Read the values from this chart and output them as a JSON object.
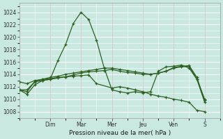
{
  "background_color": "#c8e8e0",
  "grid_color": "#ffffff",
  "line_color": "#2d6020",
  "xlabel": "Pression niveau de la mer( hPa )",
  "ylim": [
    1007,
    1025.5
  ],
  "yticks": [
    1008,
    1010,
    1012,
    1014,
    1016,
    1018,
    1020,
    1022,
    1024
  ],
  "day_labels": [
    "Dim",
    "Mar",
    "Mer",
    "Jeu",
    "Ven",
    "S"
  ],
  "day_positions": [
    2,
    4,
    6,
    8,
    10,
    12
  ],
  "xlim": [
    0,
    13
  ],
  "series": [
    {
      "x": [
        0,
        0.5,
        1,
        1.5,
        2,
        2.5,
        3,
        3.5,
        4,
        4.5,
        5,
        5.5,
        6,
        6.5,
        7,
        7.5,
        8,
        8.5,
        9,
        9.5,
        10,
        10.5,
        11,
        11.5,
        12
      ],
      "y": [
        1011.5,
        1010.8,
        1012.3,
        1013.0,
        1013.2,
        1016.2,
        1018.8,
        1022.2,
        1024.0,
        1022.8,
        1019.5,
        1015.0,
        1011.5,
        1011.2,
        1011.0,
        1011.2,
        1011.0,
        1011.2,
        1014.5,
        1015.2,
        1015.3,
        1015.5,
        1015.0,
        1013.2,
        1010.0
      ]
    },
    {
      "x": [
        0,
        0.5,
        1,
        1.5,
        2,
        2.5,
        3,
        3.5,
        4,
        4.5,
        5,
        5.5,
        6,
        6.5,
        7,
        7.5,
        8,
        8.5,
        9,
        9.5,
        10,
        10.5,
        11,
        11.5,
        12
      ],
      "y": [
        1011.5,
        1011.2,
        1012.8,
        1013.0,
        1013.2,
        1013.4,
        1013.6,
        1013.9,
        1014.2,
        1014.4,
        1014.5,
        1014.6,
        1014.8,
        1014.5,
        1014.3,
        1014.2,
        1014.0,
        1014.0,
        1014.2,
        1014.5,
        1015.0,
        1015.2,
        1015.3,
        1013.2,
        1009.5
      ]
    },
    {
      "x": [
        0,
        0.5,
        1,
        1.5,
        2,
        2.5,
        3,
        3.5,
        4,
        4.5,
        5,
        5.5,
        6,
        6.5,
        7,
        7.5,
        8,
        8.5,
        9,
        9.5,
        10,
        10.5,
        11,
        11.5,
        12
      ],
      "y": [
        1011.5,
        1011.5,
        1012.8,
        1013.2,
        1013.5,
        1013.7,
        1014.0,
        1014.2,
        1014.4,
        1014.6,
        1014.8,
        1015.0,
        1015.0,
        1014.8,
        1014.6,
        1014.4,
        1014.2,
        1014.0,
        1014.2,
        1014.5,
        1015.1,
        1015.3,
        1015.4,
        1013.5,
        1009.8
      ]
    },
    {
      "x": [
        0,
        0.5,
        1,
        1.5,
        2,
        2.5,
        3,
        3.5,
        4,
        4.5,
        5,
        6,
        6.5,
        7,
        7.5,
        8,
        8.5,
        9,
        9.5,
        10,
        10.5,
        11,
        11.5,
        12
      ],
      "y": [
        1012.8,
        1012.5,
        1013.0,
        1013.2,
        1013.3,
        1013.5,
        1013.6,
        1013.7,
        1013.8,
        1013.9,
        1012.5,
        1011.8,
        1012.0,
        1011.8,
        1011.5,
        1011.2,
        1010.8,
        1010.5,
        1010.3,
        1010.0,
        1009.8,
        1009.5,
        1008.2,
        1008.0
      ]
    }
  ]
}
